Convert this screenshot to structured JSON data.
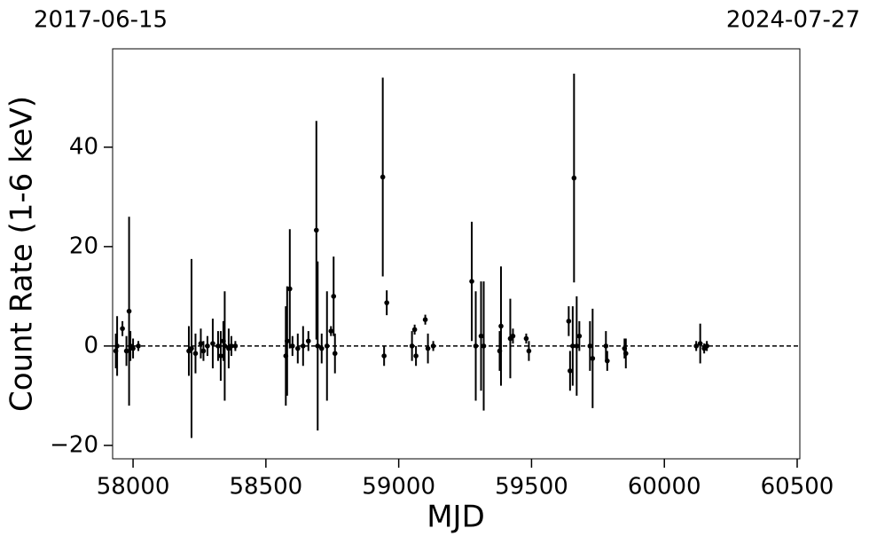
{
  "chart_data": {
    "type": "scatter",
    "top_labels": [
      "2017-06-15",
      "2024-07-27"
    ],
    "xlabel": "MJD",
    "ylabel": "Count Rate (1-6 keV)",
    "color": "#000000",
    "hline": 0,
    "xlim": [
      57923,
      60510
    ],
    "xticks": [
      58000,
      58500,
      59000,
      59500,
      60000,
      60500
    ],
    "ylim": [
      -22.7,
      59.8
    ],
    "yticks": [
      {
        "value": -20,
        "label": "−20"
      },
      0,
      20,
      40
    ],
    "x": [
      57935,
      57940,
      57960,
      57975,
      57985,
      57990,
      58000,
      58020,
      58210,
      58220,
      58235,
      58255,
      58265,
      58280,
      58300,
      58320,
      58330,
      58340,
      58345,
      58360,
      58370,
      58385,
      58575,
      58580,
      58590,
      58600,
      58620,
      58640,
      58660,
      58690,
      58695,
      58710,
      58730,
      58745,
      58755,
      58760,
      58940,
      58945,
      58955,
      59050,
      59060,
      59065,
      59100,
      59110,
      59130,
      59275,
      59290,
      59310,
      59320,
      59380,
      59385,
      59420,
      59430,
      59480,
      59490,
      59640,
      59645,
      59655,
      59660,
      59670,
      59680,
      59720,
      59730,
      59780,
      59785,
      59850,
      59855,
      60120,
      60135,
      60150,
      60160
    ],
    "values": [
      -1,
      0,
      3.5,
      -1,
      7,
      0,
      -0.5,
      0,
      -1,
      -0.5,
      -1.5,
      0.5,
      -1,
      0,
      0.5,
      0,
      -2,
      1,
      0,
      -0.5,
      0,
      0,
      -2,
      1,
      11.5,
      0,
      -0.5,
      0,
      1,
      23.3,
      0,
      -0.5,
      0,
      3,
      10,
      -1.5,
      34,
      -2,
      8.7,
      0,
      3.3,
      -2,
      5.3,
      -0.5,
      0,
      13,
      0,
      2,
      0,
      -1,
      4,
      1.5,
      2,
      1.5,
      -1,
      5,
      -5,
      0,
      33.8,
      0,
      2,
      0,
      -2.5,
      0,
      -3,
      -0.5,
      -1.5,
      0,
      0.5,
      -0.5,
      0
    ],
    "errors": [
      3.5,
      6,
      1.5,
      3,
      19,
      3,
      2,
      1,
      5,
      18,
      4,
      3,
      2,
      2,
      5,
      3,
      5,
      4,
      11,
      4,
      2,
      1,
      10,
      11,
      12,
      2,
      3,
      4,
      2,
      22,
      17,
      3,
      11,
      1,
      8,
      4,
      20,
      2,
      2.5,
      3,
      1,
      2,
      1,
      3,
      1,
      12,
      11,
      11,
      13,
      4,
      12,
      8,
      1.5,
      1,
      2,
      3,
      4,
      8,
      21,
      10,
      3,
      5,
      10,
      3,
      2,
      2,
      3,
      1,
      4,
      1,
      1
    ]
  }
}
